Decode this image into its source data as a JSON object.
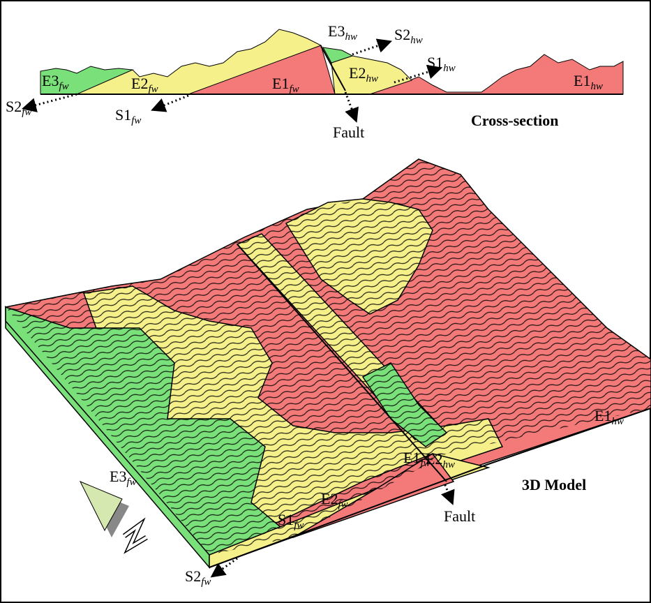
{
  "cross_section": {
    "title": "Cross-section",
    "fault": "Fault",
    "labels": [
      {
        "text": "E3",
        "sub": "fw"
      },
      {
        "text": "E2",
        "sub": "fw"
      },
      {
        "text": "E1",
        "sub": "fw"
      },
      {
        "text": "E2",
        "sub": "hw"
      },
      {
        "text": "E1",
        "sub": "hw"
      },
      {
        "text": "E3",
        "sub": "hw"
      },
      {
        "text": "S2",
        "sub": "hw"
      },
      {
        "text": "S1",
        "sub": "hw"
      },
      {
        "text": "S2",
        "sub": "fw"
      },
      {
        "text": "S1",
        "sub": "fw"
      }
    ]
  },
  "model": {
    "title": "3D Model",
    "fault": "Fault",
    "labels": [
      {
        "text": "E3",
        "sub": "fw"
      },
      {
        "text": "E2",
        "sub": "fw"
      },
      {
        "text": "E1",
        "sub": "fw"
      },
      {
        "text": "E2",
        "sub": "hw"
      },
      {
        "text": "E1",
        "sub": "hw"
      },
      {
        "text": "S1",
        "sub": "fw"
      },
      {
        "text": "S2",
        "sub": "fw"
      }
    ]
  }
}
